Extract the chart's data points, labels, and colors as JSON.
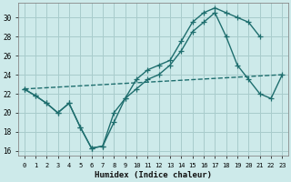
{
  "xlabel": "Humidex (Indice chaleur)",
  "bg_color": "#cdeaea",
  "grid_color": "#a8cccc",
  "line_color": "#1e6e6e",
  "xlim": [
    -0.5,
    23.5
  ],
  "ylim": [
    15.5,
    31.5
  ],
  "xticks": [
    0,
    1,
    2,
    3,
    4,
    5,
    6,
    7,
    8,
    9,
    10,
    11,
    12,
    13,
    14,
    15,
    16,
    17,
    18,
    19,
    20,
    21,
    22,
    23
  ],
  "yticks": [
    16,
    18,
    20,
    22,
    24,
    26,
    28,
    30
  ],
  "line1_x": [
    0,
    1,
    2,
    3,
    4,
    5,
    6,
    7,
    8,
    9,
    10,
    11,
    12,
    13,
    14,
    15,
    16,
    17,
    18,
    19,
    20,
    21
  ],
  "line1_y": [
    22.5,
    21.8,
    21.0,
    20.0,
    21.0,
    18.5,
    16.3,
    16.5,
    20.0,
    21.5,
    23.5,
    24.5,
    25.0,
    25.5,
    27.5,
    29.5,
    30.5,
    31.0,
    30.5,
    30.0,
    29.5,
    28.0
  ],
  "line2_x": [
    0,
    1,
    2,
    3,
    4,
    5,
    6,
    7,
    8,
    9,
    10,
    11,
    12,
    13,
    14,
    15,
    16,
    17,
    18,
    19,
    20,
    21,
    22,
    23
  ],
  "line2_y": [
    22.5,
    21.8,
    21.0,
    20.0,
    21.0,
    18.5,
    16.3,
    16.5,
    19.0,
    21.5,
    22.5,
    23.5,
    24.0,
    25.0,
    26.5,
    28.5,
    29.5,
    30.5,
    28.0,
    25.0,
    23.5,
    22.0,
    21.5,
    24.0
  ],
  "line3_x": [
    0,
    23
  ],
  "line3_y": [
    22.5,
    24.0
  ]
}
